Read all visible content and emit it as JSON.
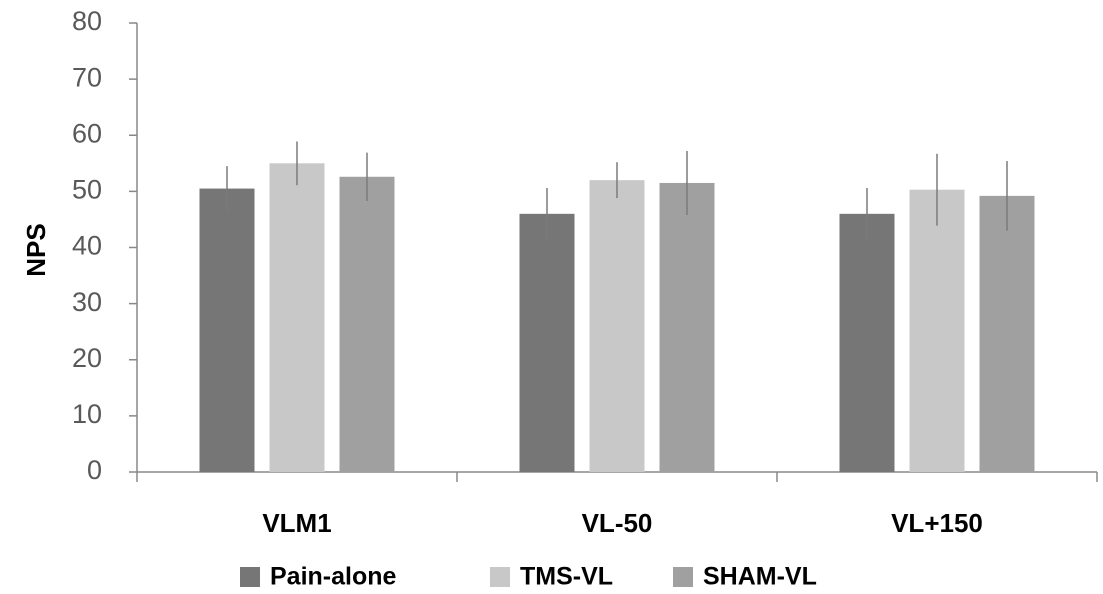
{
  "chart_data": {
    "type": "bar",
    "y_label": "NPS",
    "categories": [
      "VLM1",
      "VL-50",
      "VL+150"
    ],
    "series": [
      {
        "name": "Pain-alone",
        "color": "#767676",
        "values": [
          50.5,
          46,
          46
        ],
        "errors": [
          4,
          4.6,
          4.6
        ]
      },
      {
        "name": "TMS-VL",
        "color": "#c8c8c8",
        "values": [
          55,
          52,
          50.3
        ],
        "errors": [
          3.9,
          3.2,
          6.4
        ]
      },
      {
        "name": "SHAM-VL",
        "color": "#a0a0a0",
        "values": [
          52.6,
          51.5,
          49.2
        ],
        "errors": [
          4.3,
          5.7,
          6.2
        ]
      }
    ],
    "ylim": [
      0,
      80
    ],
    "yticks": [
      0,
      10,
      20,
      30,
      40,
      50,
      60,
      70,
      80
    ],
    "legend": "bottom"
  }
}
